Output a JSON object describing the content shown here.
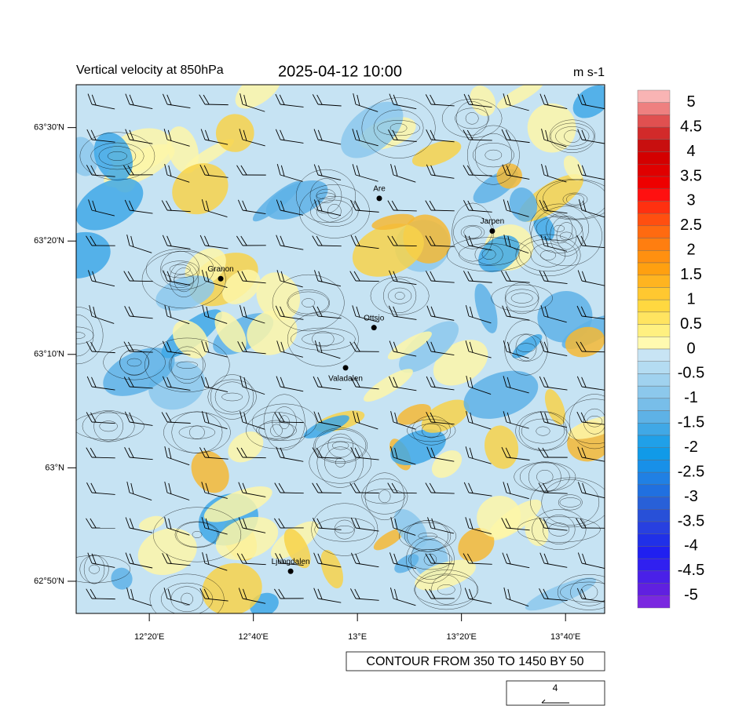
{
  "map": {
    "title": "Vertical velocity at 850hPa",
    "datetime": "2025-04-12 10:00",
    "units": "m s-1",
    "xlim": [
      12.099,
      13.792
    ],
    "ylim": [
      62.786,
      63.563
    ],
    "xticks": [
      {
        "value": 12.3333,
        "label": "12°20'E"
      },
      {
        "value": 12.6667,
        "label": "12°40'E"
      },
      {
        "value": 13,
        "label": "13°E"
      },
      {
        "value": 13.3333,
        "label": "13°20'E"
      },
      {
        "value": 13.6667,
        "label": "13°40'E"
      }
    ],
    "yticks": [
      {
        "value": 63.5,
        "label": "63°30'N"
      },
      {
        "value": 63.3333,
        "label": "63°20'N"
      },
      {
        "value": 63.1667,
        "label": "63°10'N"
      },
      {
        "value": 63,
        "label": "63°N"
      },
      {
        "value": 62.8333,
        "label": "62°50'N"
      }
    ],
    "places": [
      {
        "name": "Are",
        "lon": 13.07,
        "lat": 63.396
      },
      {
        "name": "Jarpen",
        "lon": 13.432,
        "lat": 63.348
      },
      {
        "name": "Granon",
        "lon": 12.562,
        "lat": 63.278
      },
      {
        "name": "Ottsjo",
        "lon": 13.053,
        "lat": 63.206
      },
      {
        "name": "Valadalen",
        "lon": 12.962,
        "lat": 63.147
      },
      {
        "name": "Ljungdalen",
        "lon": 12.786,
        "lat": 62.848
      }
    ],
    "colorbar": {
      "colors": [
        "#f9b4b4",
        "#ee8080",
        "#e05050",
        "#d22a2a",
        "#c80f0f",
        "#d40000",
        "#e00000",
        "#ee0000",
        "#ff1010",
        "#ff3010",
        "#ff4f10",
        "#ff6a10",
        "#ff7e10",
        "#ff9010",
        "#ffa010",
        "#ffb420",
        "#ffc830",
        "#ffd840",
        "#ffe460",
        "#fff080",
        "#fffab0",
        "#c8e4f4",
        "#b4dcf2",
        "#a0d2ef",
        "#8cc8ec",
        "#78bee9",
        "#5eb2e6",
        "#40a8e6",
        "#20a0e8",
        "#109ae8",
        "#1890e8",
        "#2080e4",
        "#2070e0",
        "#2860d8",
        "#2850d8",
        "#2840e0",
        "#2030e8",
        "#2020f0",
        "#3020f0",
        "#4a20e8",
        "#6020e0",
        "#7a28e0"
      ],
      "labels": [
        5,
        4.5,
        4,
        3.5,
        3,
        2.5,
        2,
        1.5,
        1,
        0.5,
        0,
        -0.5,
        -1,
        -1.5,
        -2,
        -2.5,
        -3,
        -3.5,
        -4,
        -4.5,
        -5
      ]
    },
    "contour_note": "CONTOUR FROM 350 TO 1450 BY 50",
    "reference_vector": "4"
  }
}
